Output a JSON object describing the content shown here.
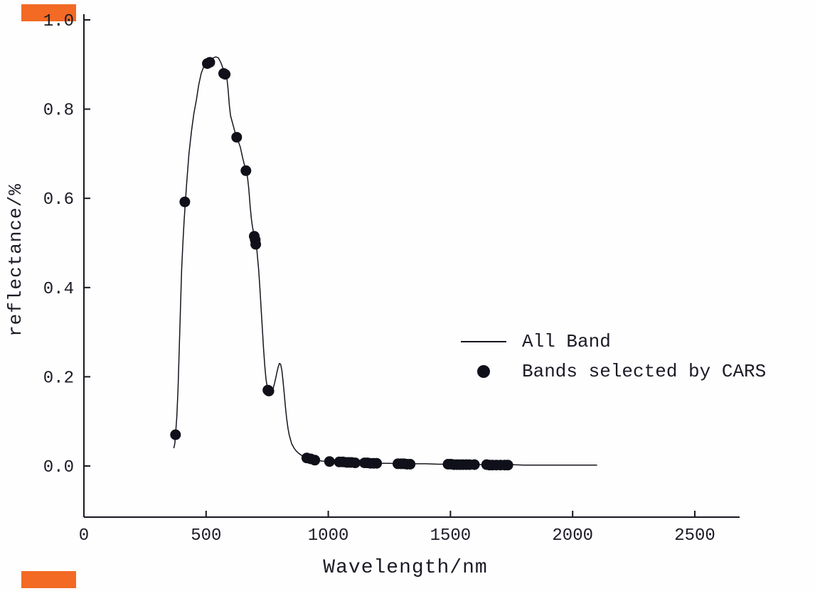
{
  "page": {
    "background": "#fffefe",
    "marks": {
      "color": "#f26a24"
    }
  },
  "chart_data": {
    "type": "line",
    "title": "",
    "xlabel": "Wavelength/nm",
    "ylabel": "reflectance/%",
    "xlim": [
      0,
      2500
    ],
    "ylim": [
      0,
      1.0
    ],
    "xticks": [
      0,
      500,
      1000,
      1500,
      2000,
      2500
    ],
    "yticks": [
      0.0,
      0.2,
      0.4,
      0.6,
      0.8,
      1.0
    ],
    "grid": false,
    "legend_position": "center-right",
    "legend": [
      {
        "label": "All Band",
        "marker": "line"
      },
      {
        "label": "Bands selected by CARS",
        "marker": "dot"
      }
    ],
    "series": [
      {
        "name": "All Band",
        "type": "line",
        "color": "#15151f",
        "points": [
          [
            368,
            0.04
          ],
          [
            372,
            0.05
          ],
          [
            375,
            0.07
          ],
          [
            380,
            0.11
          ],
          [
            385,
            0.17
          ],
          [
            390,
            0.26
          ],
          [
            395,
            0.35
          ],
          [
            400,
            0.44
          ],
          [
            405,
            0.5
          ],
          [
            410,
            0.55
          ],
          [
            415,
            0.59
          ],
          [
            420,
            0.63
          ],
          [
            430,
            0.7
          ],
          [
            440,
            0.75
          ],
          [
            450,
            0.79
          ],
          [
            460,
            0.82
          ],
          [
            470,
            0.855
          ],
          [
            480,
            0.88
          ],
          [
            490,
            0.895
          ],
          [
            500,
            0.9
          ],
          [
            510,
            0.905
          ],
          [
            520,
            0.91
          ],
          [
            530,
            0.915
          ],
          [
            540,
            0.917
          ],
          [
            550,
            0.915
          ],
          [
            560,
            0.905
          ],
          [
            570,
            0.89
          ],
          [
            575,
            0.882
          ],
          [
            580,
            0.878
          ],
          [
            585,
            0.87
          ],
          [
            590,
            0.845
          ],
          [
            595,
            0.81
          ],
          [
            600,
            0.785
          ],
          [
            610,
            0.765
          ],
          [
            620,
            0.745
          ],
          [
            625,
            0.737
          ],
          [
            630,
            0.73
          ],
          [
            640,
            0.715
          ],
          [
            650,
            0.69
          ],
          [
            660,
            0.668
          ],
          [
            665,
            0.66
          ],
          [
            670,
            0.645
          ],
          [
            675,
            0.62
          ],
          [
            680,
            0.585
          ],
          [
            685,
            0.555
          ],
          [
            690,
            0.535
          ],
          [
            695,
            0.522
          ],
          [
            700,
            0.515
          ],
          [
            703,
            0.505
          ],
          [
            706,
            0.495
          ],
          [
            710,
            0.47
          ],
          [
            715,
            0.44
          ],
          [
            720,
            0.4
          ],
          [
            725,
            0.355
          ],
          [
            730,
            0.31
          ],
          [
            735,
            0.265
          ],
          [
            740,
            0.225
          ],
          [
            745,
            0.195
          ],
          [
            750,
            0.178
          ],
          [
            755,
            0.17
          ],
          [
            760,
            0.166
          ],
          [
            765,
            0.165
          ],
          [
            770,
            0.168
          ],
          [
            775,
            0.175
          ],
          [
            780,
            0.185
          ],
          [
            785,
            0.197
          ],
          [
            790,
            0.21
          ],
          [
            795,
            0.222
          ],
          [
            800,
            0.23
          ],
          [
            805,
            0.228
          ],
          [
            810,
            0.215
          ],
          [
            815,
            0.19
          ],
          [
            820,
            0.16
          ],
          [
            825,
            0.13
          ],
          [
            830,
            0.105
          ],
          [
            835,
            0.085
          ],
          [
            840,
            0.07
          ],
          [
            850,
            0.05
          ],
          [
            860,
            0.04
          ],
          [
            870,
            0.033
          ],
          [
            880,
            0.028
          ],
          [
            890,
            0.024
          ],
          [
            900,
            0.021
          ],
          [
            915,
            0.018
          ],
          [
            930,
            0.016
          ],
          [
            950,
            0.013
          ],
          [
            975,
            0.011
          ],
          [
            1000,
            0.01
          ],
          [
            1050,
            0.009
          ],
          [
            1100,
            0.008
          ],
          [
            1150,
            0.007
          ],
          [
            1200,
            0.006
          ],
          [
            1250,
            0.006
          ],
          [
            1300,
            0.005
          ],
          [
            1350,
            0.005
          ],
          [
            1400,
            0.005
          ],
          [
            1450,
            0.004
          ],
          [
            1500,
            0.004
          ],
          [
            1550,
            0.004
          ],
          [
            1600,
            0.003
          ],
          [
            1650,
            0.003
          ],
          [
            1700,
            0.003
          ],
          [
            1750,
            0.003
          ],
          [
            1800,
            0.002
          ],
          [
            1850,
            0.002
          ],
          [
            1900,
            0.002
          ],
          [
            1950,
            0.002
          ],
          [
            2000,
            0.002
          ],
          [
            2050,
            0.002
          ],
          [
            2100,
            0.002
          ]
        ]
      },
      {
        "name": "Bands selected by CARS",
        "type": "scatter",
        "color": "#10101a",
        "marker_radius": 7.5,
        "points": [
          [
            375,
            0.07
          ],
          [
            413,
            0.592
          ],
          [
            505,
            0.902
          ],
          [
            515,
            0.905
          ],
          [
            572,
            0.88
          ],
          [
            578,
            0.878
          ],
          [
            625,
            0.737
          ],
          [
            663,
            0.662
          ],
          [
            697,
            0.515
          ],
          [
            701,
            0.507
          ],
          [
            703,
            0.497
          ],
          [
            753,
            0.17
          ],
          [
            757,
            0.168
          ],
          [
            912,
            0.018
          ],
          [
            928,
            0.016
          ],
          [
            945,
            0.013
          ],
          [
            1005,
            0.01
          ],
          [
            1045,
            0.009
          ],
          [
            1060,
            0.009
          ],
          [
            1075,
            0.008
          ],
          [
            1085,
            0.008
          ],
          [
            1095,
            0.008
          ],
          [
            1110,
            0.007
          ],
          [
            1148,
            0.007
          ],
          [
            1160,
            0.007
          ],
          [
            1172,
            0.006
          ],
          [
            1185,
            0.006
          ],
          [
            1198,
            0.006
          ],
          [
            1285,
            0.005
          ],
          [
            1298,
            0.005
          ],
          [
            1310,
            0.005
          ],
          [
            1322,
            0.004
          ],
          [
            1335,
            0.004
          ],
          [
            1490,
            0.004
          ],
          [
            1502,
            0.004
          ],
          [
            1515,
            0.003
          ],
          [
            1528,
            0.003
          ],
          [
            1540,
            0.003
          ],
          [
            1552,
            0.003
          ],
          [
            1565,
            0.003
          ],
          [
            1578,
            0.003
          ],
          [
            1598,
            0.003
          ],
          [
            1648,
            0.003
          ],
          [
            1660,
            0.002
          ],
          [
            1672,
            0.002
          ],
          [
            1688,
            0.002
          ],
          [
            1705,
            0.002
          ],
          [
            1722,
            0.002
          ],
          [
            1735,
            0.002
          ]
        ]
      }
    ]
  }
}
